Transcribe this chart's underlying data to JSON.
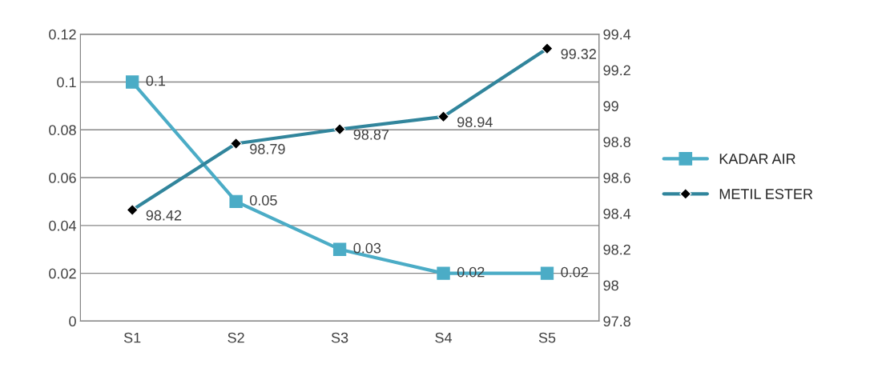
{
  "chart_data": {
    "type": "line",
    "categories": [
      "S1",
      "S2",
      "S3",
      "S4",
      "S5"
    ],
    "series": [
      {
        "name": "KADAR AIR",
        "color": "#4bacc6",
        "values": [
          0.1,
          0.05,
          0.03,
          0.02,
          0.02
        ],
        "marker": "square"
      },
      {
        "name": "METIL ESTER",
        "color": "#31859c",
        "values": [
          98.42,
          98.79,
          98.87,
          98.94,
          99.32
        ],
        "marker": "diamond",
        "axis": "y2"
      }
    ],
    "ylim": [
      0,
      0.12
    ],
    "yticks": [
      0,
      0.02,
      0.04,
      0.06,
      0.08,
      0.1,
      0.12
    ],
    "y2lim": [
      97.8,
      99.4
    ],
    "y2ticks": [
      97.8,
      98,
      98.2,
      98.4,
      98.6,
      98.8,
      99,
      99.2,
      99.4
    ],
    "grid": "y",
    "legend": "right",
    "data_labels": true
  }
}
